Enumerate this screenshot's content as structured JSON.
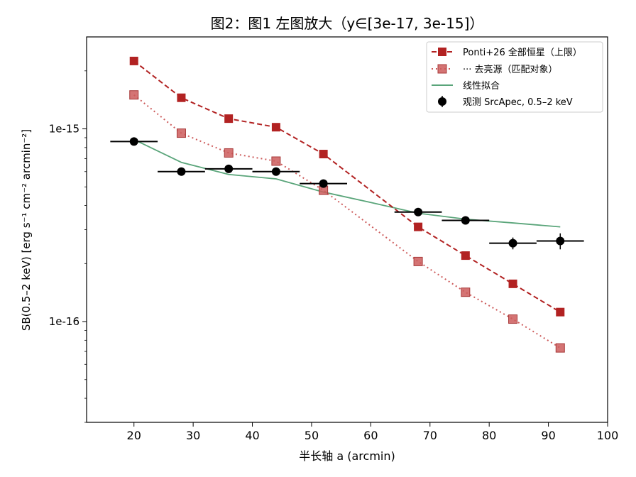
{
  "chart_data": {
    "type": "scatter",
    "title": "图2：图1 左图放大（y∈[3e-17, 3e-15]）",
    "xlabel": "半长轴 a (arcmin)",
    "ylabel": "SB(0.5–2 keV) [erg s⁻¹ cm⁻² arcmin⁻²]",
    "x_ticks": [
      "20",
      "30",
      "40",
      "50",
      "60",
      "70",
      "80",
      "90",
      "100"
    ],
    "x_tick_values": [
      20,
      30,
      40,
      50,
      60,
      70,
      80,
      90,
      100
    ],
    "y_ticks": [
      "1e-15",
      "1e-16"
    ],
    "y_tick_values": [
      1e-15,
      1e-16
    ],
    "xlim": [
      12,
      100
    ],
    "ylim": [
      3e-17,
      3e-15
    ],
    "yscale": "log",
    "grid": false,
    "legend_position": "top-right",
    "series": [
      {
        "name": "Ponti+26 全部恒星（上限）",
        "color": "#b22222",
        "style": "dashed-square",
        "x": [
          20,
          28,
          36,
          44,
          52,
          68,
          76,
          84,
          92
        ],
        "y": [
          2.25e-15,
          1.45e-15,
          1.13e-15,
          1.02e-15,
          7.4e-16,
          3.1e-16,
          2.2e-16,
          1.57e-16,
          1.12e-16
        ]
      },
      {
        "name": "··· 去亮源（匹配对象）",
        "color": "#cd5c5c",
        "style": "dotted-square",
        "x": [
          20,
          28,
          36,
          44,
          52,
          68,
          76,
          84,
          92
        ],
        "y": [
          1.5e-15,
          9.5e-16,
          7.5e-16,
          6.8e-16,
          4.8e-16,
          2.05e-16,
          1.42e-16,
          1.03e-16,
          7.3e-17
        ]
      },
      {
        "name": "线性拟合",
        "color": "#5aa57a",
        "style": "line",
        "x": [
          20,
          28,
          36,
          44,
          52,
          60,
          68,
          76,
          84,
          92
        ],
        "y": [
          8.8e-16,
          6.7e-16,
          5.8e-16,
          5.5e-16,
          4.7e-16,
          4.15e-16,
          3.65e-16,
          3.4e-16,
          3.25e-16,
          3.1e-16
        ]
      },
      {
        "name": "观测 SrcApec, 0.5–2 keV",
        "color": "#000000",
        "style": "errorbar-circle",
        "x": [
          20,
          28,
          36,
          44,
          52,
          68,
          76,
          84,
          92
        ],
        "xerr": [
          4,
          4,
          4,
          4,
          4,
          4,
          4,
          4,
          4
        ],
        "y": [
          8.6e-16,
          6e-16,
          6.2e-16,
          6e-16,
          5.2e-16,
          3.7e-16,
          3.35e-16,
          2.55e-16,
          2.62e-16
        ],
        "yerr": [
          2e-17,
          1.5e-17,
          1.5e-17,
          1.5e-17,
          1.5e-17,
          1.2e-17,
          1.2e-17,
          1.8e-17,
          2.5e-17
        ]
      }
    ]
  }
}
